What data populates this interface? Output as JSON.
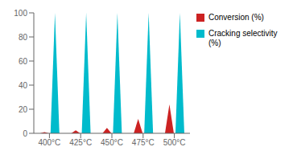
{
  "chart_data": {
    "type": "bar",
    "categories": [
      "400°C",
      "425°C",
      "450°C",
      "475°C",
      "500°C"
    ],
    "series": [
      {
        "name": "Conversion (%)",
        "color": "#cc2222",
        "values": [
          1.0,
          2.5,
          4.5,
          12.0,
          24.0
        ]
      },
      {
        "name": "Cracking selectivity\n(%)",
        "color": "#00bbcc",
        "values": [
          100,
          100,
          100,
          100,
          100
        ]
      }
    ],
    "ylim": [
      0,
      100
    ],
    "yticks": [
      0,
      20,
      40,
      60,
      80,
      100
    ],
    "grid": false,
    "legend": "upper right"
  }
}
